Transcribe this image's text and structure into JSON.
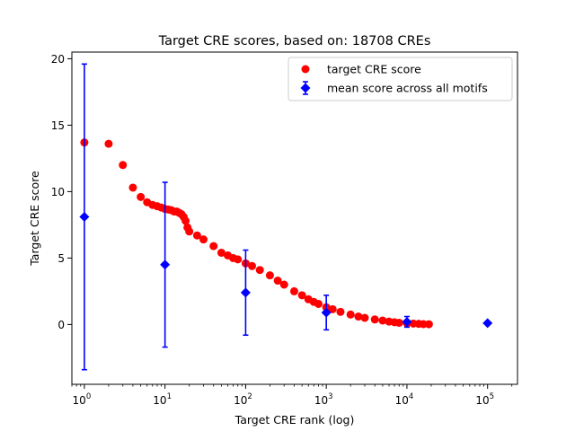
{
  "chart_data": {
    "type": "scatter",
    "title": "Target CRE scores, based on: 18708 CREs",
    "xlabel": "Target CRE rank (log)",
    "ylabel": "Target CRE score",
    "xscale": "log",
    "xlim": [
      0.7,
      235000
    ],
    "ylim": [
      -4.5,
      20.5
    ],
    "x_ticks": [
      1,
      10,
      100,
      1000,
      10000,
      100000
    ],
    "x_tick_labels": [
      {
        "base": "10",
        "exp": "0"
      },
      {
        "base": "10",
        "exp": "1"
      },
      {
        "base": "10",
        "exp": "2"
      },
      {
        "base": "10",
        "exp": "3"
      },
      {
        "base": "10",
        "exp": "4"
      },
      {
        "base": "10",
        "exp": "5"
      }
    ],
    "y_ticks": [
      0,
      5,
      10,
      15,
      20
    ],
    "y_tick_labels": [
      "0",
      "5",
      "10",
      "15",
      "20"
    ],
    "grid": false,
    "legend_position": "top-right",
    "series": [
      {
        "name": "target CRE score",
        "kind": "markers",
        "marker": "circle",
        "color": "#ff0000",
        "x": [
          1,
          2,
          3,
          4,
          5,
          6,
          7,
          8,
          9,
          10,
          11,
          12,
          13,
          14,
          15,
          16,
          17,
          18,
          19,
          20,
          25,
          30,
          40,
          50,
          60,
          70,
          80,
          100,
          120,
          150,
          200,
          250,
          300,
          400,
          500,
          600,
          700,
          800,
          1000,
          1200,
          1500,
          2000,
          2500,
          3000,
          4000,
          5000,
          6000,
          7000,
          8000,
          10000,
          12000,
          14000,
          16000,
          18708
        ],
        "y": [
          13.7,
          13.6,
          12.0,
          10.3,
          9.6,
          9.2,
          9.0,
          8.9,
          8.8,
          8.7,
          8.65,
          8.6,
          8.5,
          8.5,
          8.4,
          8.3,
          8.1,
          7.8,
          7.3,
          7.0,
          6.7,
          6.4,
          5.9,
          5.4,
          5.2,
          5.0,
          4.9,
          4.6,
          4.4,
          4.1,
          3.7,
          3.3,
          3.0,
          2.5,
          2.2,
          1.9,
          1.7,
          1.55,
          1.3,
          1.15,
          0.95,
          0.75,
          0.6,
          0.5,
          0.38,
          0.3,
          0.22,
          0.17,
          0.13,
          0.1,
          0.07,
          0.05,
          0.03,
          0.02
        ]
      },
      {
        "name": "mean score across all motifs",
        "kind": "errorbar",
        "marker": "diamond",
        "color": "#0000ff",
        "x": [
          1,
          10,
          100,
          1000,
          10000,
          100000
        ],
        "y": [
          8.1,
          4.5,
          2.4,
          0.9,
          0.2,
          0.1
        ],
        "err": [
          11.5,
          6.2,
          3.2,
          1.3,
          0.4,
          0.0
        ]
      }
    ]
  }
}
